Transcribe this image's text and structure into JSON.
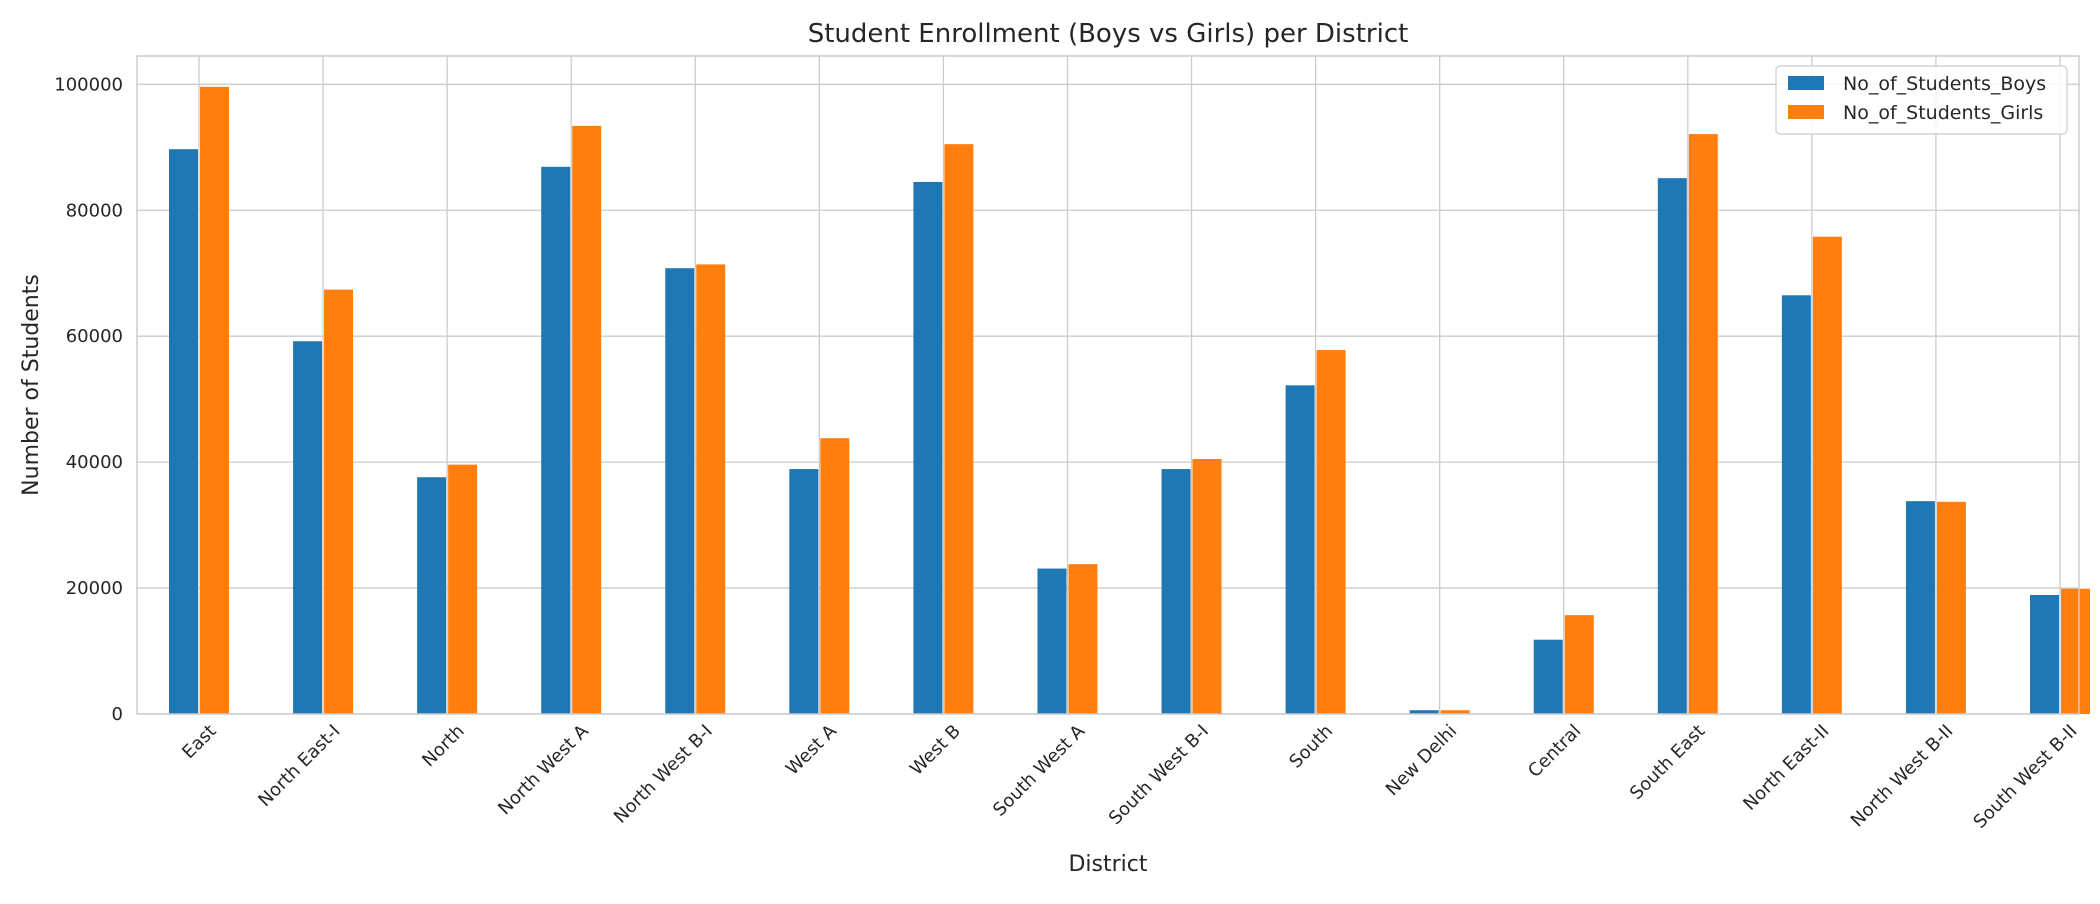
{
  "chart_data": {
    "type": "bar",
    "title": "Student Enrollment (Boys vs Girls) per District",
    "xlabel": "District",
    "ylabel": "Number of Students",
    "categories": [
      "East",
      "North East-I",
      "North",
      "North West A",
      "North West B-I",
      "West A",
      "West B",
      "South West A",
      "South West B-I",
      "South",
      "New Delhi",
      "Central",
      "South East",
      "North East-II",
      "North West B-II",
      "South West B-II"
    ],
    "series": [
      {
        "name": "No_of_Students_Boys",
        "color": "#1f77b4",
        "values": [
          89700,
          59200,
          37600,
          86900,
          70800,
          38900,
          84500,
          23100,
          38900,
          52200,
          600,
          11800,
          85100,
          66500,
          33800,
          18900
        ]
      },
      {
        "name": "No_of_Students_Girls",
        "color": "#ff7f0e",
        "values": [
          99600,
          67400,
          39600,
          93400,
          71400,
          43800,
          90500,
          23800,
          40500,
          57800,
          600,
          15700,
          92100,
          75800,
          33700,
          19900
        ]
      }
    ],
    "ylim": [
      0,
      104500
    ],
    "yticks": [
      0,
      20000,
      40000,
      60000,
      80000,
      100000
    ],
    "grid": true,
    "legend": "top-right"
  }
}
